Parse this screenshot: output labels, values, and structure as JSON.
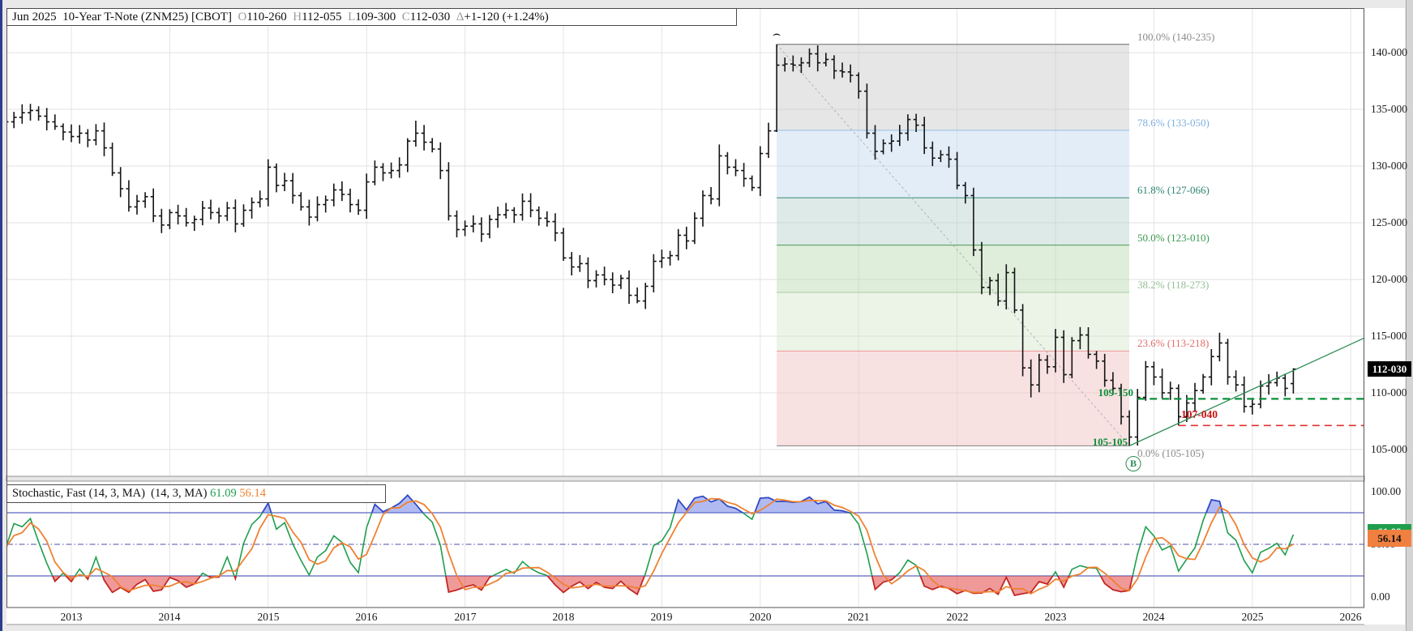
{
  "header": {
    "segments": [
      {
        "text": "Jun 2025  10-Year T-Note (ZNM25) [CBOT]  ",
        "color": "#111111"
      },
      {
        "text": "O",
        "color": "#9a9a9a"
      },
      {
        "text": "110-260  ",
        "color": "#111111"
      },
      {
        "text": "H",
        "color": "#9a9a9a"
      },
      {
        "text": "112-055  ",
        "color": "#111111"
      },
      {
        "text": "L",
        "color": "#9a9a9a"
      },
      {
        "text": "109-300  ",
        "color": "#111111"
      },
      {
        "text": "C",
        "color": "#9a9a9a"
      },
      {
        "text": "112-030  ",
        "color": "#111111"
      },
      {
        "text": "Δ",
        "color": "#9a9a9a"
      },
      {
        "text": "+1-120 (+1.24%)",
        "color": "#111111"
      }
    ]
  },
  "indicator_header": {
    "segments": [
      {
        "text": "Stochastic, Fast (14, 3, MA)  (14, 3, MA) ",
        "color": "#111111"
      },
      {
        "text": "61.09 ",
        "color": "#1f9e4e"
      },
      {
        "text": "56.14",
        "color": "#ef8132"
      }
    ]
  },
  "price_axis": {
    "tick_labels": [
      {
        "text": "140-000",
        "value": 140
      },
      {
        "text": "135-000",
        "value": 135
      },
      {
        "text": "130-000",
        "value": 130
      },
      {
        "text": "125-000",
        "value": 125
      },
      {
        "text": "120-000",
        "value": 120
      },
      {
        "text": "115-000",
        "value": 115
      },
      {
        "text": "110-000",
        "value": 110
      },
      {
        "text": "105-000",
        "value": 105
      }
    ],
    "current_tag": {
      "text": "112-030",
      "value": 112.094,
      "bg": "#000000",
      "fg": "#ffffff"
    }
  },
  "stoch_axis": {
    "tick_labels": [
      {
        "text": "100.00",
        "value": 100
      },
      {
        "text": "50.00",
        "value": 50
      },
      {
        "text": "0.00",
        "value": 0
      }
    ],
    "k_tag": {
      "text": "61.09",
      "value": 61.09,
      "bg": "#1f9e4e"
    },
    "d_tag": {
      "text": "56.14",
      "value": 56.14,
      "bg": "#f08040"
    }
  },
  "x_axis": {
    "year_labels": [
      "2013",
      "2014",
      "2015",
      "2016",
      "2017",
      "2018",
      "2019",
      "2020",
      "2021",
      "2022",
      "2023",
      "2024",
      "2025",
      "2026"
    ]
  },
  "annotations": {
    "swing_high_marker": "⌢",
    "swing_low_marker": "B",
    "resistance_label": "109-150",
    "support_label": "107-040",
    "low_price_label": "105-105"
  },
  "chart_data": {
    "type": "ohlc-bar",
    "title": "Jun 2025 10-Year T-Note (ZNM25) [CBOT]",
    "period": "monthly",
    "start_month": "2012-05",
    "bar_color": "#141414",
    "y_axis": {
      "min": 102,
      "max": 144,
      "tick_step": 5,
      "grid": true
    },
    "monthly_closes": [
      133.9,
      134.3,
      134.7,
      134.9,
      134.4,
      133.9,
      133.5,
      133.0,
      132.6,
      132.9,
      132.3,
      133.1,
      131.6,
      129.4,
      128.0,
      126.4,
      126.9,
      127.3,
      125.6,
      124.8,
      125.9,
      125.6,
      125.0,
      125.3,
      126.3,
      125.9,
      125.6,
      126.3,
      124.9,
      126.1,
      126.8,
      127.1,
      129.9,
      128.3,
      128.7,
      127.4,
      126.4,
      125.5,
      126.6,
      127.0,
      127.9,
      127.5,
      126.6,
      126.1,
      128.6,
      129.9,
      129.4,
      129.6,
      130.1,
      132.2,
      132.9,
      132.1,
      131.5,
      129.6,
      125.6,
      124.4,
      124.7,
      124.9,
      124.0,
      125.3,
      125.7,
      126.1,
      125.7,
      126.9,
      126.1,
      125.4,
      125.1,
      124.1,
      121.9,
      121.1,
      121.4,
      119.9,
      120.4,
      120.0,
      119.5,
      120.1,
      118.6,
      118.1,
      119.4,
      121.6,
      121.9,
      122.1,
      123.9,
      123.4,
      125.4,
      127.4,
      127.1,
      130.9,
      129.9,
      129.6,
      128.9,
      128.1,
      131.1,
      133.1,
      138.9,
      139.0,
      138.9,
      139.1,
      139.9,
      139.1,
      139.4,
      138.4,
      138.3,
      138.0,
      136.6,
      132.9,
      131.3,
      132.0,
      132.2,
      132.9,
      134.1,
      133.6,
      131.6,
      130.7,
      131.0,
      130.6,
      128.3,
      127.4,
      122.6,
      119.3,
      119.9,
      118.1,
      120.6,
      117.3,
      112.2,
      110.7,
      112.9,
      112.3,
      114.9,
      111.6,
      114.6,
      115.1,
      113.4,
      112.8,
      111.1,
      110.4,
      107.9,
      106.1,
      109.6,
      112.3,
      111.4,
      110.0,
      110.4,
      107.9,
      109.1,
      110.2,
      111.4,
      113.2,
      114.4,
      111.4,
      110.7,
      108.8,
      109.0,
      110.6,
      110.9,
      111.3,
      110.4,
      112.094
    ],
    "bar_overrides": {
      "2015-01": {
        "high": 130.6
      },
      "2016-07": {
        "high": 134.0
      },
      "2018-10": {
        "low": 117.9
      },
      "2019-08": {
        "high": 131.9
      },
      "2020-03": {
        "high": 140.734,
        "low": 133.0
      },
      "2022-10": {
        "low": 109.6
      },
      "2023-10": {
        "low": 105.328
      },
      "2024-04": {
        "low": 107.125
      },
      "2024-09": {
        "high": 115.31
      },
      "2025-06": {
        "open": 110.813,
        "high": 112.172,
        "low": 109.938,
        "close": 112.094
      }
    },
    "current_bar": {
      "open": "110-260",
      "high": "112-055",
      "low": "109-300",
      "close": "112-030",
      "change": "+1-120",
      "change_pct": "+1.24%"
    },
    "fibonacci": {
      "from": {
        "month": "2020-03",
        "price": 140.734,
        "price_text": "140-235"
      },
      "to": {
        "month": "2023-10",
        "price": 105.328,
        "price_text": "105-105"
      },
      "diagonal_color": "#b4b4b4",
      "levels": [
        {
          "pct": "100.0%",
          "label": "100.0% (140-235)",
          "price": 140.734,
          "text_color": "#8a8a8a",
          "line_color": "#8f8f8f",
          "zone_fill": "rgba(200,200,200,0.45)"
        },
        {
          "pct": "78.6%",
          "label": "78.6% (133-050)",
          "price": 133.156,
          "text_color": "#7fb0e0",
          "line_color": "#9ec3e8",
          "zone_fill": "rgba(190,215,240,0.45)"
        },
        {
          "pct": "61.8%",
          "label": "61.8% (127-066)",
          "price": 127.203,
          "text_color": "#2f8573",
          "line_color": "#4d9486",
          "zone_fill": "rgba(175,205,200,0.42)"
        },
        {
          "pct": "50.0%",
          "label": "50.0% (123-010)",
          "price": 123.031,
          "text_color": "#3c9a50",
          "line_color": "#57a45f",
          "zone_fill": "rgba(185,215,175,0.45)"
        },
        {
          "pct": "38.2%",
          "label": "38.2% (118-273)",
          "price": 118.859,
          "text_color": "#93bf93",
          "line_color": "#a8cba5",
          "zone_fill": "rgba(205,228,195,0.40)"
        },
        {
          "pct": "23.6%",
          "label": "23.6% (113-218)",
          "price": 113.684,
          "text_color": "#e36d6d",
          "line_color": "#eda0a0",
          "zone_fill": "rgba(242,200,200,0.55)"
        },
        {
          "pct": "0.0%",
          "label": "0.0% (105-105)",
          "price": 105.328,
          "text_color": "#8a8a8a",
          "line_color": "#8f8f8f",
          "zone_fill": null,
          "label_below": true
        }
      ]
    },
    "support_lines": [
      {
        "label": "109-150",
        "price": 109.469,
        "color": "#0b8f3a",
        "width": 2.2,
        "dash": "9 6",
        "from_month": "2023-11"
      },
      {
        "label": "107-040",
        "price": 107.125,
        "color": "#e03030",
        "width": 1.6,
        "dash": "9 6",
        "from_month": "2024-04"
      }
    ],
    "trendline": {
      "from_month": "2023-10",
      "from_price": 105.328,
      "right_edge_price": 114.84,
      "color": "#2e8b57"
    },
    "indicator": {
      "type": "stochastic-fast",
      "label": "Stochastic, Fast (14, 3, MA)",
      "label2": "(14, 3, MA)",
      "k_period": 14,
      "smoothing": 3,
      "k_current": 61.09,
      "d_current": 56.14,
      "k_color": "#1f9e4e",
      "d_color": "#ef8132",
      "overbought": 80,
      "oversold": 20,
      "midline": 50,
      "range": [
        0,
        100
      ],
      "overbought_fill": "rgba(100,120,230,0.50)",
      "overbought_line": "#3346cc",
      "oversold_fill": "rgba(225,70,70,0.55)",
      "oversold_line": "#cc2222",
      "band_line_color": "#5a66c0",
      "mid_line_color": "#4f4fa8"
    }
  }
}
